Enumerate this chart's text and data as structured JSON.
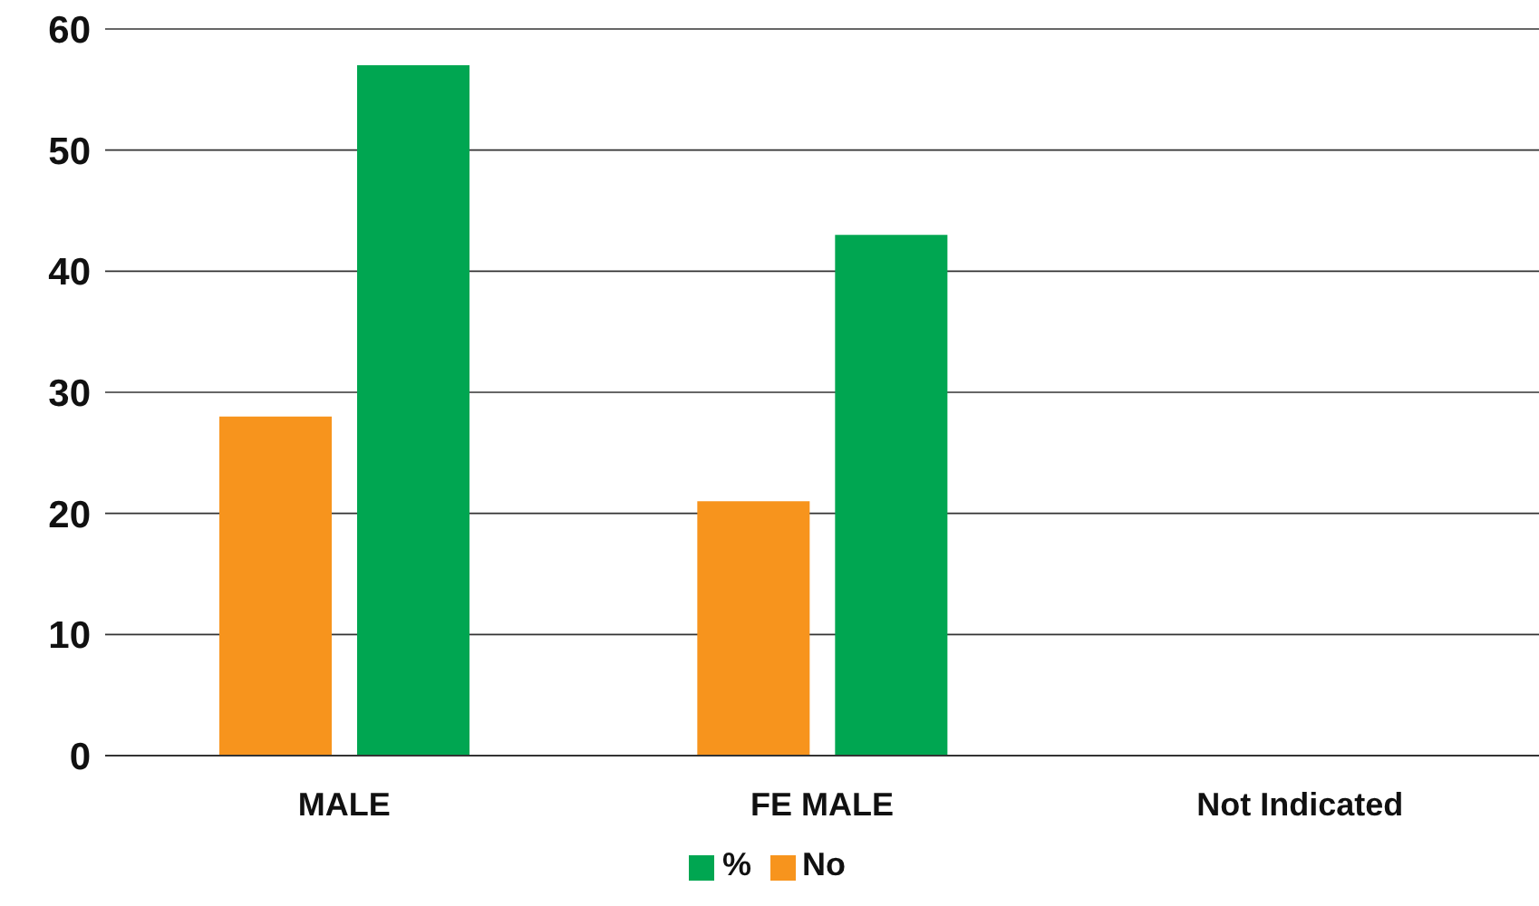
{
  "chart_data": {
    "type": "bar",
    "categories": [
      "MALE",
      "FE MALE",
      "Not Indicated"
    ],
    "series": [
      {
        "name": "No",
        "color": "#f7941d",
        "values": [
          28,
          21,
          0
        ]
      },
      {
        "name": "%",
        "color": "#00a651",
        "values": [
          57,
          43,
          0
        ]
      }
    ],
    "ylim": [
      0,
      60
    ],
    "yticks": [
      0,
      10,
      20,
      30,
      40,
      50,
      60
    ],
    "grid": "y",
    "legend": "bottom"
  }
}
